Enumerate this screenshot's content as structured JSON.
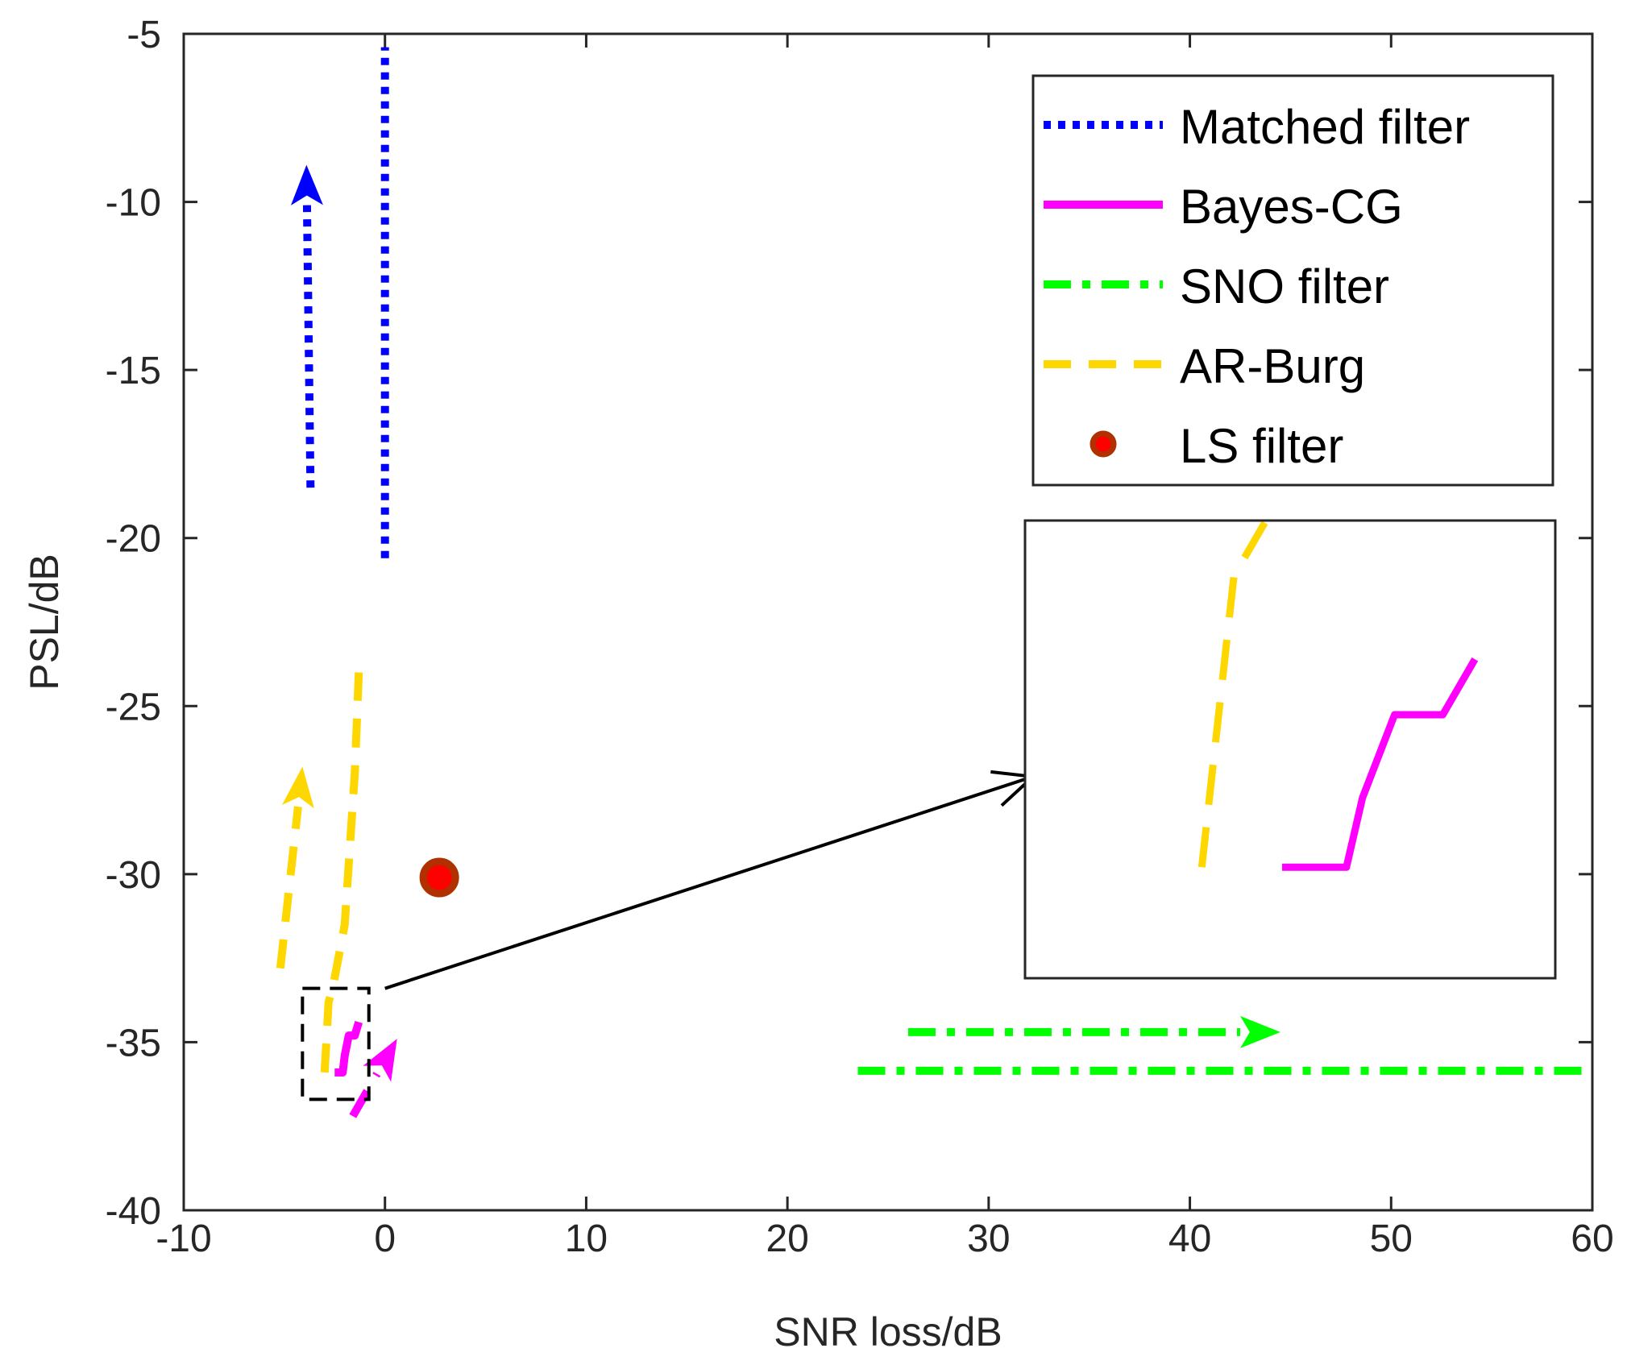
{
  "chart_data": {
    "type": "line",
    "xlabel": "SNR loss/dB",
    "ylabel": "PSL/dB",
    "xlim": [
      -10,
      60
    ],
    "ylim": [
      -40,
      -5
    ],
    "xticks": [
      -10,
      0,
      10,
      20,
      30,
      40,
      50,
      60
    ],
    "yticks": [
      -40,
      -35,
      -30,
      -25,
      -20,
      -15,
      -10,
      -5
    ],
    "xtick_labels": [
      "-10",
      "0",
      "10",
      "20",
      "30",
      "40",
      "50",
      "60"
    ],
    "ytick_labels": [
      "-40",
      "-35",
      "-30",
      "-25",
      "-20",
      "-15",
      "-10",
      "-5"
    ],
    "grid": false,
    "legend_position": "top-right",
    "series": [
      {
        "name": "Matched filter",
        "color": "#0000ff",
        "dash": "dotted",
        "x": [
          0,
          0
        ],
        "y": [
          -20.6,
          -5.4
        ]
      },
      {
        "name": "Bayes-CG",
        "color": "#ff00ff",
        "dash": "solid",
        "x": [
          -2.5,
          -2.1,
          -2.0,
          -1.8,
          -1.6,
          -1.5,
          -1.3
        ],
        "y": [
          -35.9,
          -35.9,
          -35.4,
          -34.8,
          -34.8,
          -34.8,
          -34.4
        ]
      },
      {
        "name": "SNO filter",
        "color": "#00ff00",
        "dash": "dashdot",
        "x": [
          23.5,
          60
        ],
        "y": [
          -35.85,
          -35.85
        ]
      },
      {
        "name": "AR-Burg",
        "color": "#ffd700",
        "dash": "dashed",
        "x": [
          -3.0,
          -2.8,
          -2.6,
          -2.0,
          -1.5,
          -1.3
        ],
        "y": [
          -35.9,
          -33.8,
          -33.4,
          -31.5,
          -27.0,
          -24.0
        ]
      },
      {
        "name": "LS filter",
        "color": "#ff0000",
        "edge_color": "#b03000",
        "marker": "circle",
        "x": [
          2.7
        ],
        "y": [
          -30.1
        ]
      }
    ],
    "arrows": [
      {
        "color": "#0000ff",
        "dash": "dotted",
        "from": [
          -3.7,
          -18.5
        ],
        "to": [
          -3.9,
          -8.9
        ]
      },
      {
        "color": "#ffd700",
        "dash": "dashed",
        "from": [
          -5.2,
          -32.8
        ],
        "to": [
          -4.1,
          -26.8
        ]
      },
      {
        "color": "#ff00ff",
        "dash": "dashed",
        "from": [
          -1.6,
          -37.2
        ],
        "to": [
          0.6,
          -34.9
        ]
      },
      {
        "color": "#00ff00",
        "dash": "dashdot",
        "from": [
          26.0,
          -34.7
        ],
        "to": [
          44.5,
          -34.7
        ]
      },
      {
        "color": "#000000",
        "dash": "solid",
        "from": [
          0,
          -33.4
        ],
        "to": [
          32.2,
          -27.1
        ]
      }
    ],
    "zoom_box": {
      "x": [
        -4.1,
        -0.8
      ],
      "y": [
        -36.7,
        -33.4
      ]
    }
  }
}
